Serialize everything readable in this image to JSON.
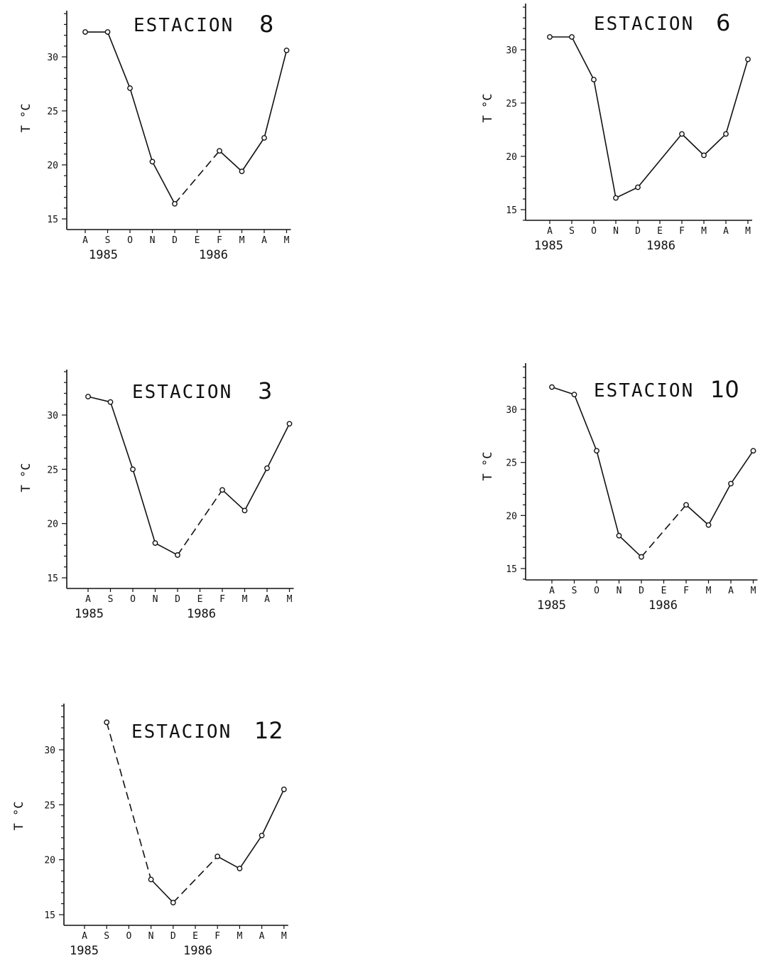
{
  "chart_data": [
    {
      "type": "line",
      "title_text": "ESTACION",
      "title_num": "8",
      "ylabel": "T °C",
      "ylim": [
        14,
        34
      ],
      "yticks": [
        15,
        20,
        25,
        30
      ],
      "ytick_labels": [
        "15",
        "20",
        "25",
        "30"
      ],
      "categories": [
        "A",
        "S",
        "O",
        "N",
        "D",
        "E",
        "F",
        "M",
        "A",
        "M"
      ],
      "year_labels": [
        "1985",
        "1986"
      ],
      "series": [
        {
          "values": [
            32.3,
            32.3,
            27.1,
            20.3,
            16.4,
            null,
            21.3,
            19.4,
            22.5,
            30.6
          ],
          "dashed_segments": [
            [
              4,
              6
            ]
          ]
        }
      ]
    },
    {
      "type": "line",
      "title_text": "ESTACION",
      "title_num": "6",
      "ylabel": "T °C",
      "ylim": [
        14,
        34
      ],
      "yticks": [
        15,
        20,
        25,
        30
      ],
      "ytick_labels": [
        "15",
        "20",
        "25",
        "30"
      ],
      "categories": [
        "A",
        "S",
        "O",
        "N",
        "D",
        "E",
        "F",
        "M",
        "A",
        "M"
      ],
      "year_labels": [
        "1985",
        "1986"
      ],
      "series": [
        {
          "values": [
            31.2,
            31.2,
            27.2,
            16.1,
            17.1,
            null,
            22.1,
            20.1,
            22.1,
            29.1
          ],
          "dashed_segments": [
            [
              3,
              6
            ]
          ]
        }
      ]
    },
    {
      "type": "line",
      "title_text": "ESTACION",
      "title_num": "3",
      "ylabel": "T °C",
      "ylim": [
        14,
        34
      ],
      "yticks": [
        15,
        20,
        25,
        30
      ],
      "ytick_labels": [
        "15",
        "20",
        "25",
        "30"
      ],
      "categories": [
        "A",
        "S",
        "O",
        "N",
        "D",
        "E",
        "F",
        "M",
        "A",
        "M"
      ],
      "year_labels": [
        "1985",
        "1986"
      ],
      "series": [
        {
          "values": [
            31.7,
            31.2,
            25.0,
            18.2,
            17.1,
            null,
            23.1,
            21.2,
            25.1,
            29.2
          ],
          "dashed_segments": [
            [
              4,
              6
            ]
          ]
        }
      ]
    },
    {
      "type": "line",
      "title_text": "ESTACION",
      "title_num": "10",
      "ylabel": "T °C",
      "ylim": [
        14,
        34
      ],
      "yticks": [
        15,
        20,
        25,
        30
      ],
      "ytick_labels": [
        "15",
        "20",
        "25",
        "30"
      ],
      "categories": [
        "A",
        "S",
        "O",
        "N",
        "D",
        "E",
        "F",
        "M",
        "A",
        "M"
      ],
      "year_labels": [
        "1985",
        "1986"
      ],
      "series": [
        {
          "values": [
            32.1,
            31.4,
            26.1,
            18.1,
            16.1,
            null,
            21.0,
            19.1,
            23.0,
            26.1
          ],
          "dashed_segments": [
            [
              4,
              6
            ]
          ]
        }
      ]
    },
    {
      "type": "line",
      "title_text": "ESTACION",
      "title_num": "12",
      "ylabel": "T °C",
      "ylim": [
        14,
        34
      ],
      "yticks": [
        15,
        20,
        25,
        30
      ],
      "ytick_labels": [
        "15",
        "20",
        "25",
        "30"
      ],
      "categories": [
        "A",
        "S",
        "O",
        "N",
        "D",
        "E",
        "F",
        "M",
        "A",
        "M"
      ],
      "year_labels": [
        "1985",
        "1986"
      ],
      "series": [
        {
          "values": [
            null,
            32.5,
            null,
            18.2,
            16.1,
            null,
            20.3,
            19.2,
            22.2,
            26.4
          ],
          "dashed_segments": [
            [
              1,
              3
            ],
            [
              4,
              6
            ]
          ]
        }
      ]
    }
  ]
}
